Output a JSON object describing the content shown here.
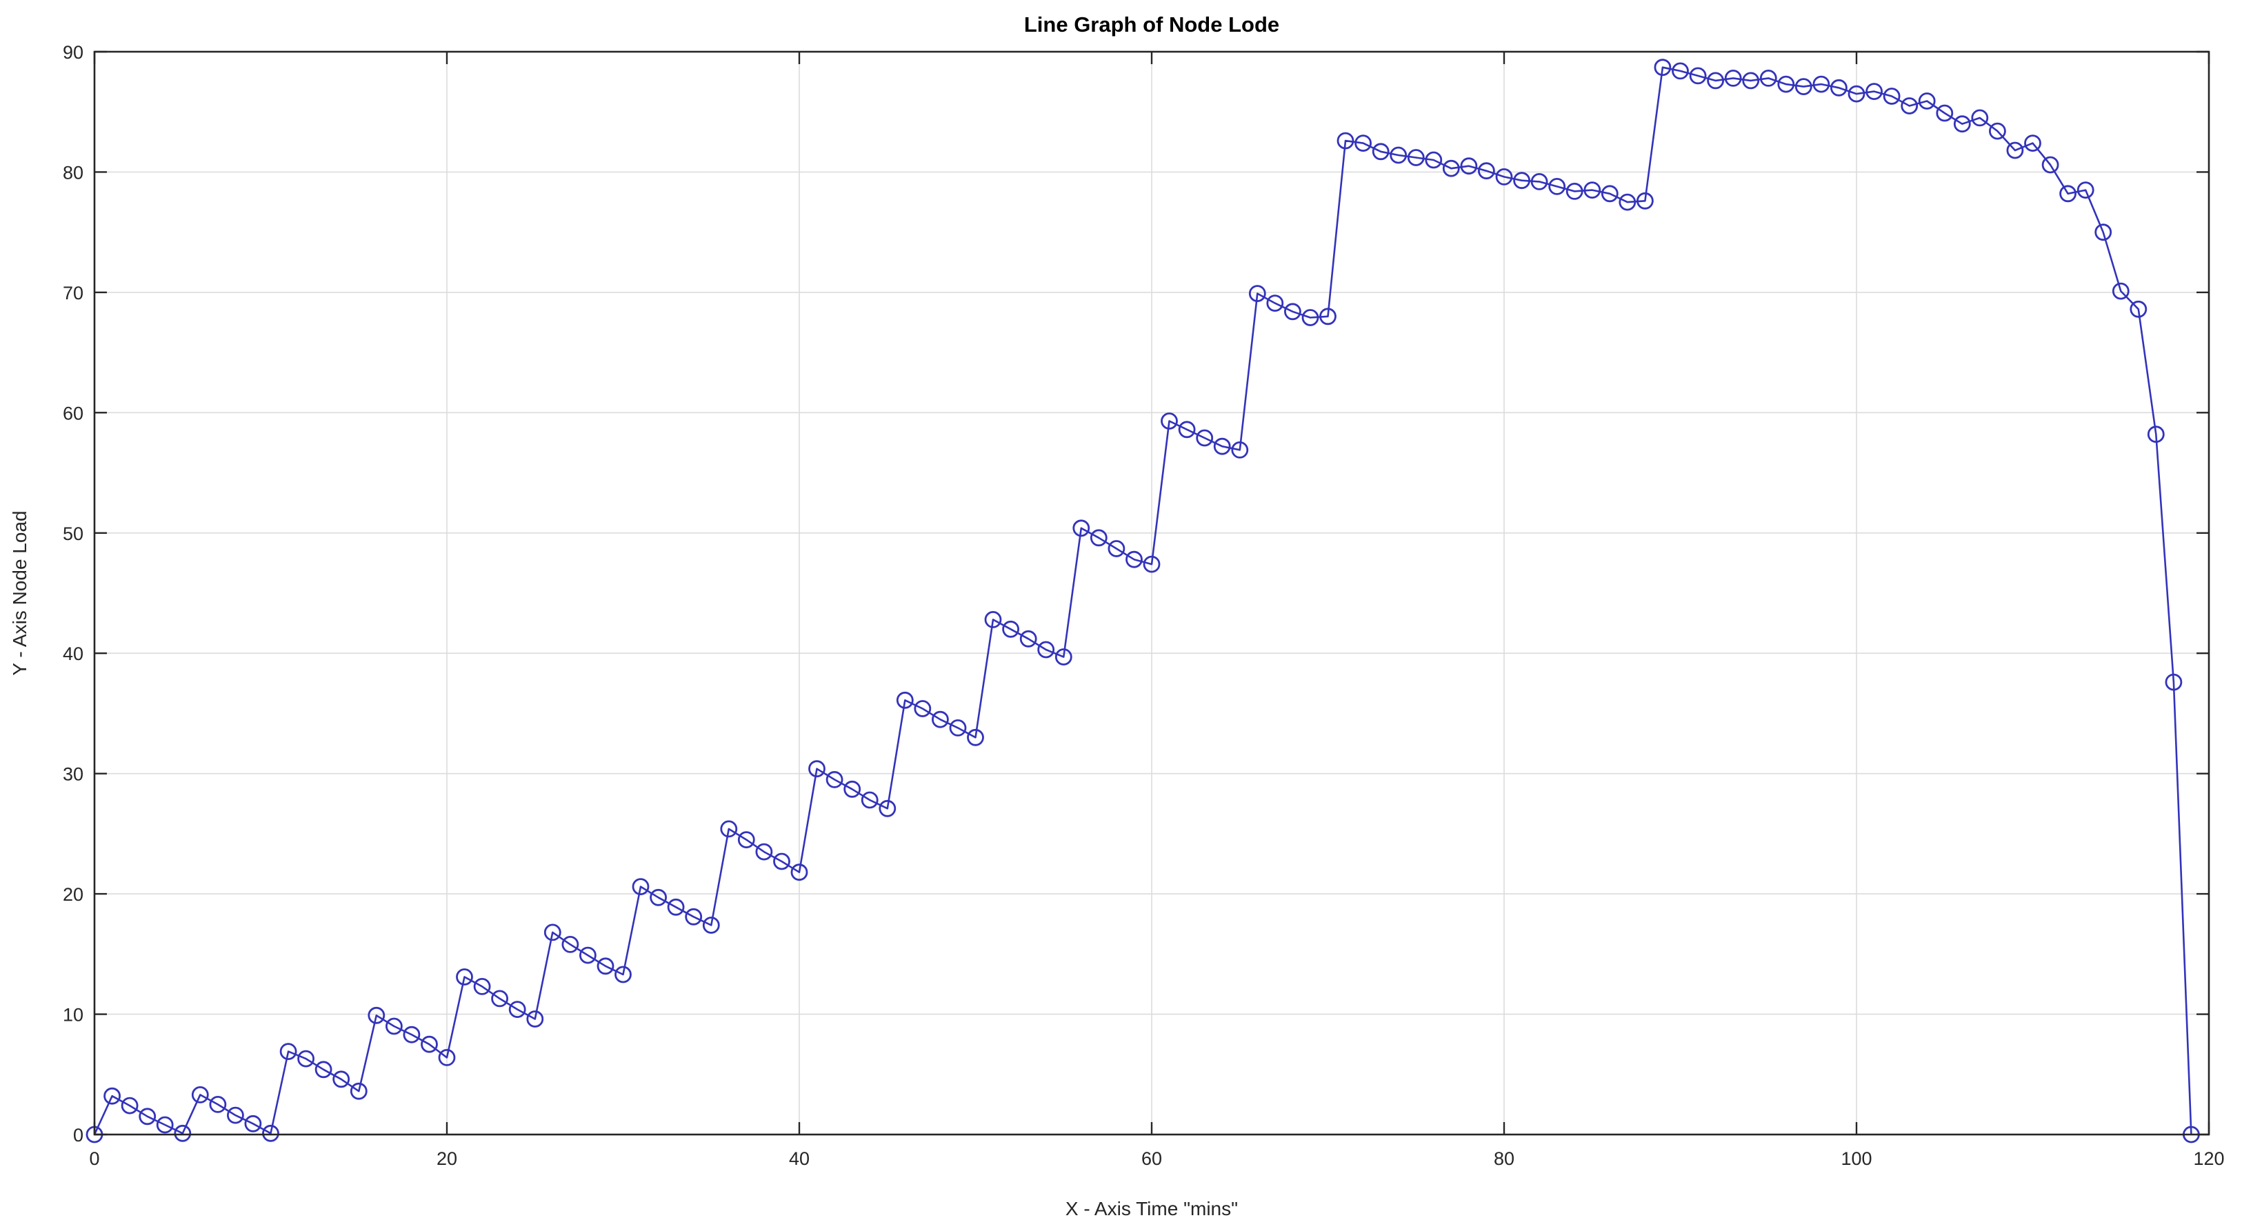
{
  "figure": {
    "background_color": "#ffffff",
    "axis_color": "#262626",
    "grid_color": "#dcdcdc",
    "line_color": "#3333bb"
  },
  "chart_data": {
    "type": "line",
    "title": "Line Graph of Node Lode",
    "xlabel": "X - Axis Time \"mins\"",
    "ylabel": "Y - Axis Node Load",
    "xlim": [
      0,
      120
    ],
    "ylim": [
      0,
      90
    ],
    "xticks": [
      0,
      20,
      40,
      60,
      80,
      100,
      120
    ],
    "yticks": [
      0,
      10,
      20,
      30,
      40,
      50,
      60,
      70,
      80,
      90
    ],
    "grid": true,
    "legend": "none",
    "marker": "o",
    "x": [
      0,
      1,
      2,
      3,
      4,
      5,
      6,
      7,
      8,
      9,
      10,
      11,
      12,
      13,
      14,
      15,
      16,
      17,
      18,
      19,
      20,
      21,
      22,
      23,
      24,
      25,
      26,
      27,
      28,
      29,
      30,
      31,
      32,
      33,
      34,
      35,
      36,
      37,
      38,
      39,
      40,
      41,
      42,
      43,
      44,
      45,
      46,
      47,
      48,
      49,
      50,
      51,
      52,
      53,
      54,
      55,
      56,
      57,
      58,
      59,
      60,
      61,
      62,
      63,
      64,
      65,
      66,
      67,
      68,
      69,
      70,
      71,
      72,
      73,
      74,
      75,
      76,
      77,
      78,
      79,
      80,
      81,
      82,
      83,
      84,
      85,
      86,
      87,
      88,
      89,
      90,
      91,
      92,
      93,
      94,
      95,
      96,
      97,
      98,
      99,
      100,
      101,
      102,
      103,
      104,
      105,
      106,
      107,
      108,
      109,
      110,
      111,
      112,
      113,
      114,
      115,
      116,
      117,
      118,
      119
    ],
    "y": [
      0.0,
      3.2,
      2.4,
      1.5,
      0.8,
      0.1,
      3.3,
      2.5,
      1.6,
      0.9,
      0.1,
      6.9,
      6.3,
      5.4,
      4.6,
      3.6,
      9.9,
      9.0,
      8.3,
      7.5,
      6.4,
      13.1,
      12.3,
      11.3,
      10.4,
      9.6,
      16.8,
      15.8,
      14.9,
      14.0,
      13.3,
      20.6,
      19.7,
      18.9,
      18.1,
      17.4,
      25.4,
      24.5,
      23.5,
      22.7,
      21.8,
      30.4,
      29.5,
      28.7,
      27.8,
      27.1,
      36.1,
      35.4,
      34.5,
      33.8,
      33.0,
      42.8,
      42.0,
      41.2,
      40.3,
      39.7,
      50.4,
      49.6,
      48.7,
      47.8,
      47.4,
      59.3,
      58.6,
      57.9,
      57.2,
      56.9,
      69.9,
      69.1,
      68.4,
      67.9,
      68.0,
      82.6,
      82.4,
      81.7,
      81.4,
      81.2,
      81.0,
      80.3,
      80.5,
      80.1,
      79.6,
      79.3,
      79.2,
      78.8,
      78.4,
      78.5,
      78.2,
      77.5,
      77.6,
      88.7,
      88.4,
      88.0,
      87.6,
      87.8,
      87.6,
      87.8,
      87.3,
      87.1,
      87.3,
      87.0,
      86.5,
      86.7,
      86.3,
      85.5,
      85.9,
      84.9,
      84.0,
      84.5,
      83.4,
      81.8,
      82.4,
      80.6,
      78.2,
      78.5,
      75.0,
      70.1,
      68.6,
      58.2,
      37.6,
      0.0
    ]
  }
}
